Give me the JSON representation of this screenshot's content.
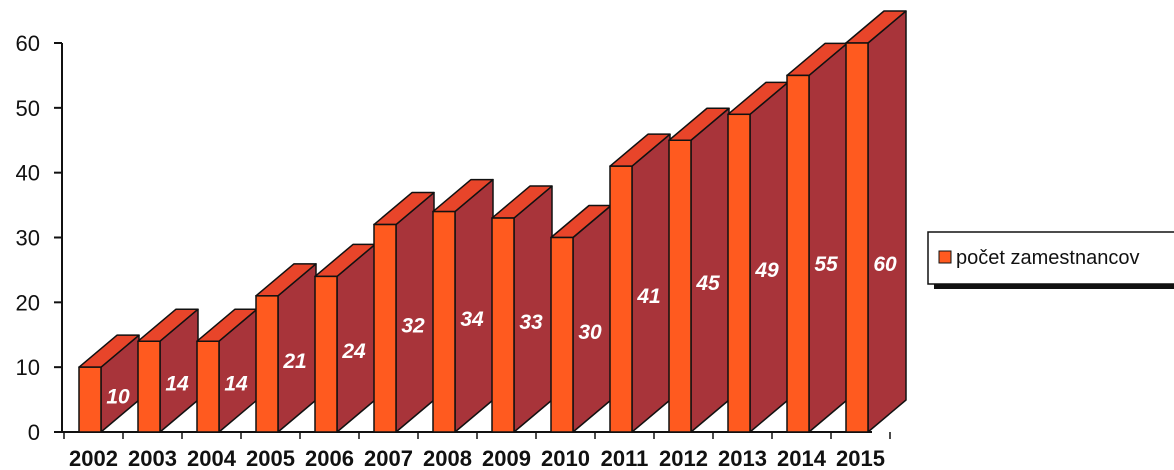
{
  "chart_data": {
    "type": "bar",
    "title": "",
    "xlabel": "",
    "ylabel": "",
    "categories": [
      "2002",
      "2003",
      "2004",
      "2005",
      "2006",
      "2007",
      "2008",
      "2009",
      "2010",
      "2011",
      "2012",
      "2013",
      "2014",
      "2015"
    ],
    "series": [
      {
        "name": "počet zamestnancov",
        "values": [
          10,
          14,
          14,
          21,
          24,
          32,
          34,
          33,
          30,
          41,
          45,
          49,
          55,
          60
        ]
      }
    ],
    "ylim": [
      0,
      60
    ],
    "yticks": [
      0,
      10,
      20,
      30,
      40,
      50,
      60
    ],
    "grid": false,
    "legend_position": "right",
    "data_labels": true,
    "three_d": true,
    "colors": {
      "front": "#ff5a1f",
      "side": "#a8343a",
      "top": "#e8452a",
      "outline": "#111111"
    }
  }
}
